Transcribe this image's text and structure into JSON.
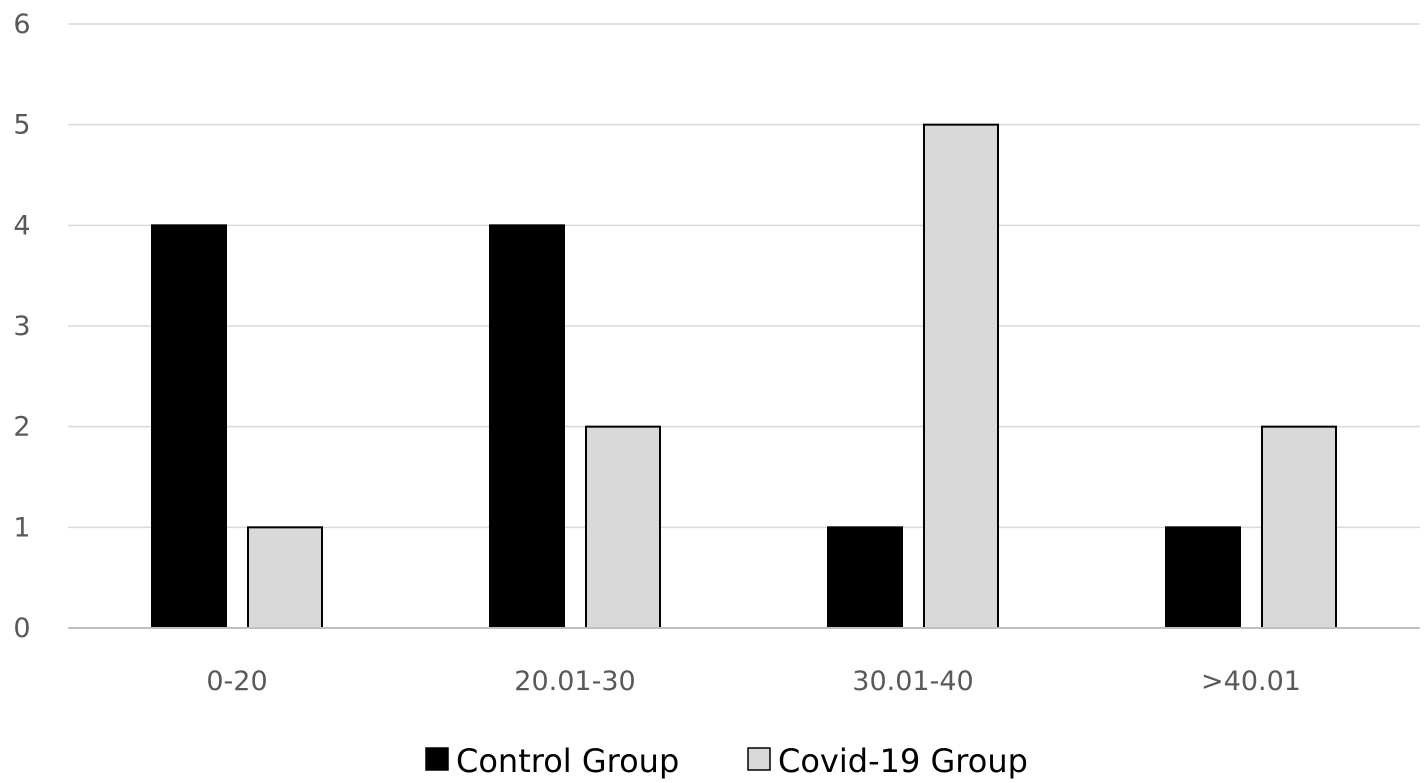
{
  "chart_data": {
    "type": "bar",
    "categories": [
      "0-20",
      "20.01-30",
      "30.01-40",
      ">40.01"
    ],
    "series": [
      {
        "name": "Control Group",
        "values": [
          4,
          4,
          1,
          1
        ],
        "color": "#000000"
      },
      {
        "name": "Covid-19 Group",
        "values": [
          1,
          2,
          5,
          2
        ],
        "color": "#d9d9d9"
      }
    ],
    "y_ticks": [
      "0",
      "1",
      "2",
      "3",
      "4",
      "5",
      "6"
    ],
    "ylim": [
      0,
      6
    ],
    "grid": true,
    "legend_position": "bottom",
    "gridline_color": "#d9d9d9",
    "axis_color": "#bfbfbf",
    "bar_outline_color": "#000000"
  }
}
